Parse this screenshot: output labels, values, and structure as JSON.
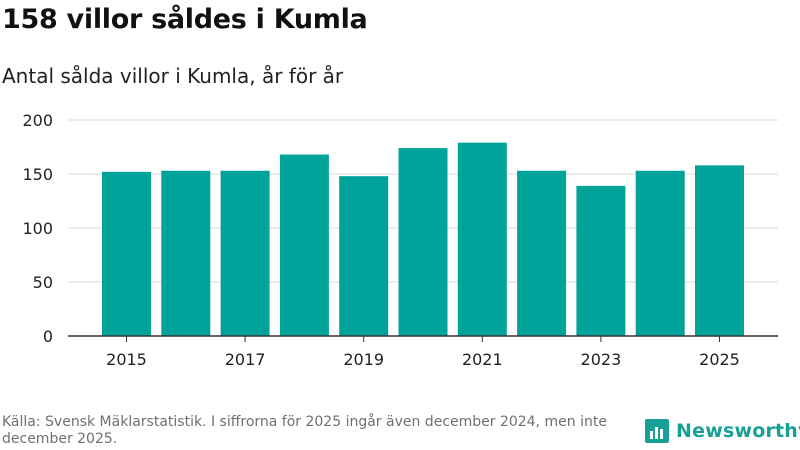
{
  "title": "158 villor såldes i Kumla",
  "subtitle": "Antal sålda villor i Kumla, år för år",
  "footer": "Källa: Svensk Mäklarstatistik. I siffrorna för 2025 ingår även december 2024, men inte december 2025.",
  "brand": {
    "name": "Newsworthy",
    "color": "#17a196"
  },
  "colors": {
    "bar": "#00a39a",
    "grid": "#d9d9d9",
    "axis": "#333333",
    "tick_text": "#222222"
  },
  "chart_data": {
    "type": "bar",
    "categories": [
      "2015",
      "2016",
      "2017",
      "2018",
      "2019",
      "2020",
      "2021",
      "2022",
      "2023",
      "2024",
      "2025"
    ],
    "values": [
      152,
      153,
      153,
      168,
      148,
      174,
      179,
      153,
      139,
      153,
      158
    ],
    "x_tick_labels": [
      "2015",
      "2017",
      "2019",
      "2021",
      "2023",
      "2025"
    ],
    "y_ticks": [
      0,
      50,
      100,
      150,
      200
    ],
    "ylim": [
      0,
      200
    ],
    "grid": true,
    "legend": "none"
  }
}
